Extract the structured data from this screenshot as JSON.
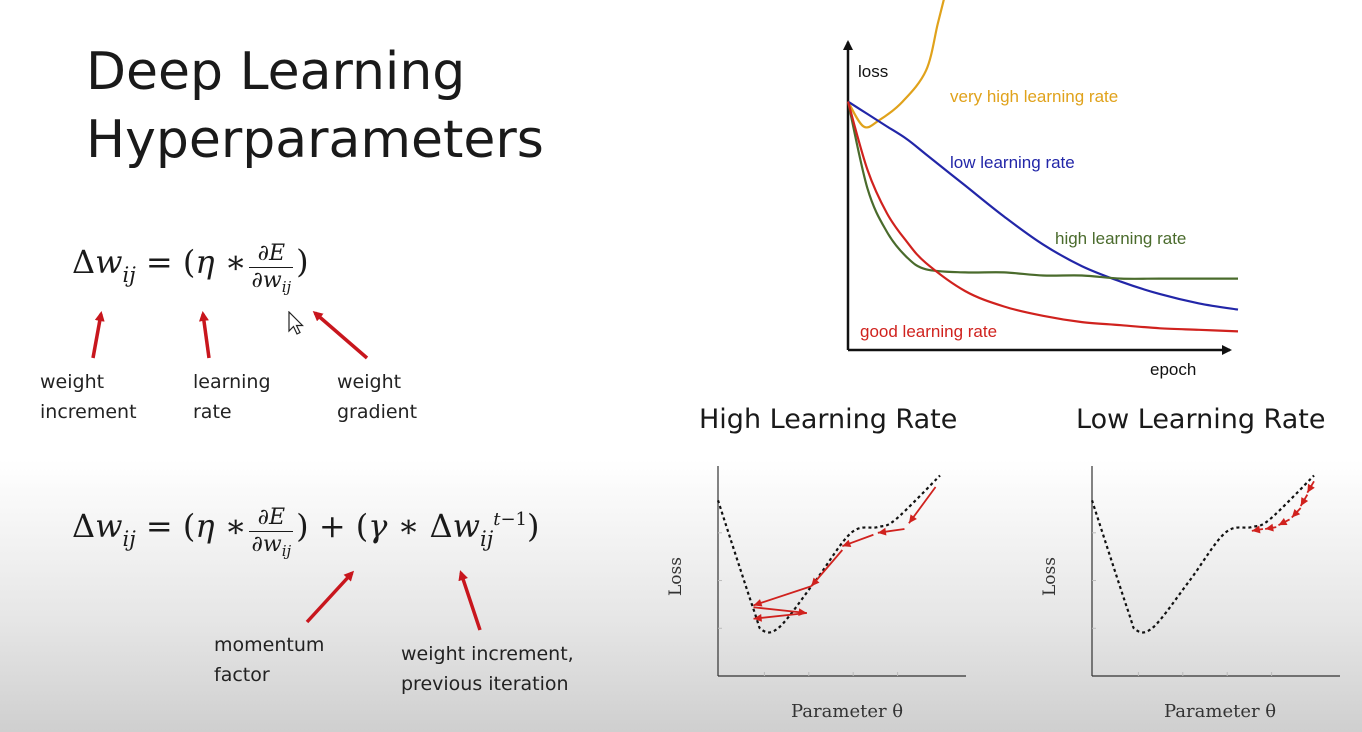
{
  "slide": {
    "title_line1": "Deep Learning",
    "title_line2": "Hyperparameters"
  },
  "equation1": {
    "labels": {
      "weight_increment": [
        "weight",
        "increment"
      ],
      "learning_rate": [
        "learning",
        "rate"
      ],
      "weight_gradient": [
        "weight",
        "gradient"
      ]
    }
  },
  "equation2": {
    "labels": {
      "momentum_factor": [
        "momentum",
        "factor"
      ],
      "previous_increment": [
        "weight increment,",
        "previous iteration"
      ]
    }
  },
  "colors": {
    "arrow_red": "#c8161d",
    "very_high": "#e0a21b",
    "low": "#2226a8",
    "high": "#4a6b2c",
    "good": "#d0221e"
  },
  "chart_data": [
    {
      "type": "line",
      "title": "",
      "xlabel": "epoch",
      "ylabel": "loss",
      "grid": false,
      "legend": "inline labels",
      "x": [
        0,
        5,
        10,
        15,
        20,
        30,
        40,
        50,
        60,
        70,
        80,
        90,
        100
      ],
      "series": [
        {
          "name": "very high learning rate",
          "color": "#e0a21b",
          "x": [
            0,
            4,
            8,
            14,
            20,
            23,
            25
          ],
          "values": [
            80,
            72,
            74,
            80,
            90,
            105,
            115
          ]
        },
        {
          "name": "low learning rate",
          "color": "#2226a8",
          "values": [
            80,
            76,
            72,
            68,
            63,
            53,
            43,
            34,
            27,
            22,
            18,
            15,
            13
          ]
        },
        {
          "name": "high learning rate",
          "color": "#4a6b2c",
          "values": [
            80,
            52,
            38,
            30,
            26,
            25,
            25,
            24,
            24,
            23,
            23,
            23,
            23
          ]
        },
        {
          "name": "good learning rate",
          "color": "#d0221e",
          "values": [
            80,
            58,
            44,
            35,
            28,
            19,
            14,
            11,
            9,
            8,
            7,
            6.5,
            6
          ]
        }
      ],
      "xlim": [
        0,
        100
      ],
      "ylim": [
        0,
        105
      ]
    },
    {
      "type": "line",
      "title": "High Learning Rate",
      "xlabel": "Parameter θ",
      "ylabel": "Loss",
      "grid": false,
      "series": [
        {
          "name": "",
          "values": [
            [
              0,
              0.92
            ],
            [
              0.8,
              0.35
            ],
            [
              1.0,
              0.24
            ],
            [
              1.4,
              0.26
            ],
            [
              2.2,
              0.5
            ],
            [
              3.0,
              0.75
            ],
            [
              3.6,
              0.78
            ],
            [
              4.0,
              0.82
            ],
            [
              5.0,
              1.05
            ]
          ]
        }
      ],
      "arrows": [
        [
          [
            4.9,
            0.99
          ],
          [
            4.3,
            0.8
          ]
        ],
        [
          [
            4.2,
            0.77
          ],
          [
            3.6,
            0.75
          ]
        ],
        [
          [
            3.5,
            0.74
          ],
          [
            2.8,
            0.68
          ]
        ],
        [
          [
            2.8,
            0.66
          ],
          [
            2.1,
            0.47
          ]
        ],
        [
          [
            2.1,
            0.47
          ],
          [
            0.8,
            0.37
          ]
        ],
        [
          [
            0.8,
            0.36
          ],
          [
            2.0,
            0.33
          ]
        ],
        [
          [
            2.0,
            0.33
          ],
          [
            0.8,
            0.3
          ]
        ]
      ]
    },
    {
      "type": "line",
      "title": "Low Learning Rate",
      "xlabel": "Parameter θ",
      "ylabel": "Loss",
      "grid": false,
      "series": [
        {
          "name": "",
          "values": [
            [
              0,
              0.92
            ],
            [
              0.8,
              0.35
            ],
            [
              1.0,
              0.24
            ],
            [
              1.4,
              0.26
            ],
            [
              2.2,
              0.5
            ],
            [
              3.0,
              0.75
            ],
            [
              3.6,
              0.78
            ],
            [
              4.0,
              0.82
            ],
            [
              5.0,
              1.05
            ]
          ]
        }
      ],
      "arrows": [
        [
          [
            5.0,
            1.02
          ],
          [
            4.85,
            0.96
          ]
        ],
        [
          [
            4.85,
            0.95
          ],
          [
            4.7,
            0.89
          ]
        ],
        [
          [
            4.7,
            0.88
          ],
          [
            4.5,
            0.83
          ]
        ],
        [
          [
            4.45,
            0.82
          ],
          [
            4.2,
            0.79
          ]
        ],
        [
          [
            4.15,
            0.78
          ],
          [
            3.9,
            0.77
          ]
        ],
        [
          [
            3.85,
            0.77
          ],
          [
            3.6,
            0.76
          ]
        ]
      ]
    }
  ]
}
